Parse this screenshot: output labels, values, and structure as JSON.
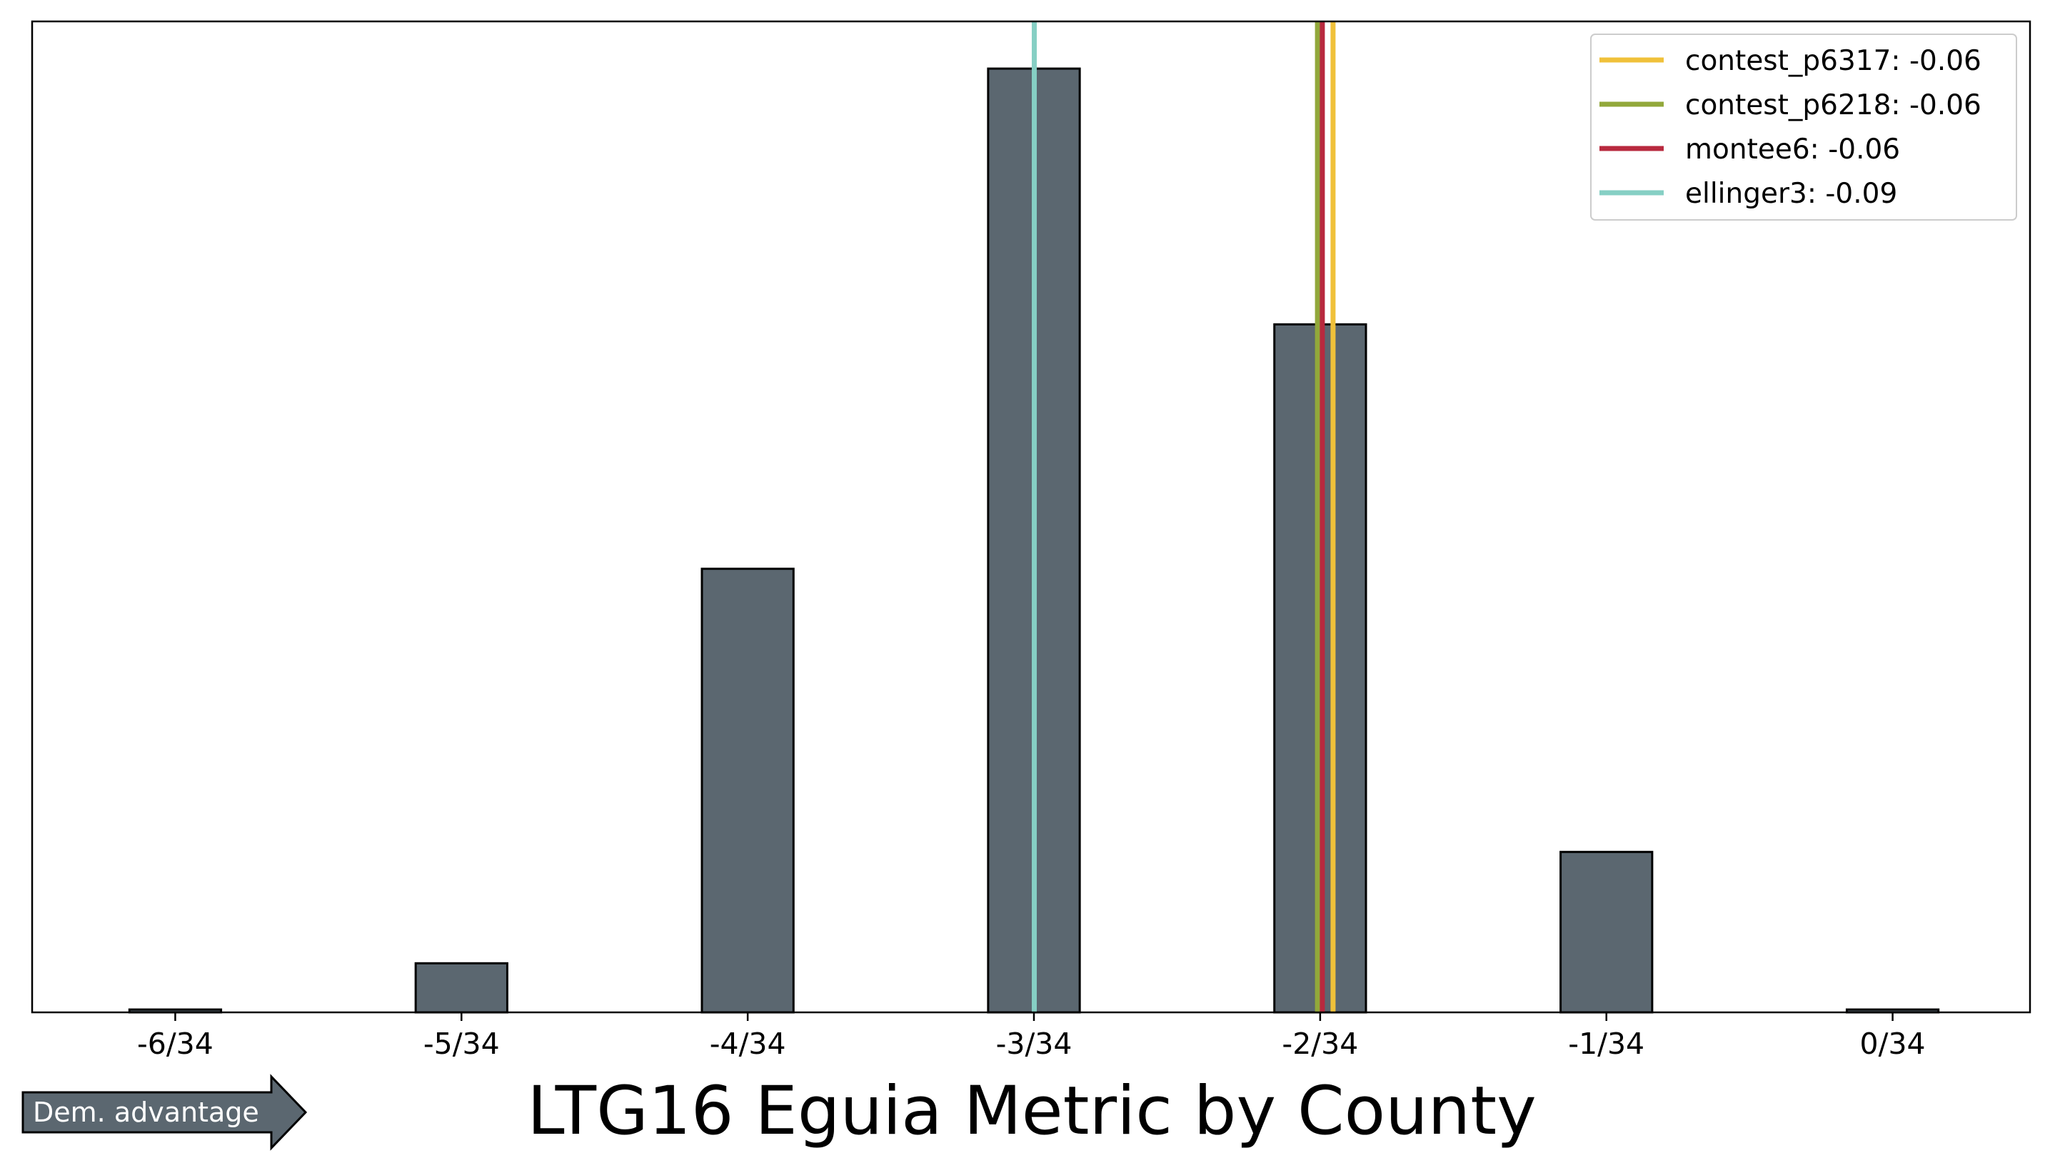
{
  "chart_data": {
    "type": "bar",
    "title": "LTG16 Eguia Metric by County",
    "xlabel": "",
    "ylabel": "",
    "x_tick_labels": [
      "-6/34",
      "-5/34",
      "-4/34",
      "-3/34",
      "-2/34",
      "-1/34",
      "0/34"
    ],
    "x_tick_values": [
      -6,
      -5,
      -4,
      -3,
      -2,
      -1,
      0
    ],
    "x_unit_denominator": 34,
    "xlim": [
      -6.5,
      0.48
    ],
    "ylim": [
      0,
      1.05
    ],
    "y_ticks_visible": false,
    "grid": false,
    "bar_color": "#5b6770",
    "bar_edge_color": "#000000",
    "bins": [
      {
        "center": -6.0,
        "value": 0.003
      },
      {
        "center": -5.5,
        "value": 0.0
      },
      {
        "center": -5.0,
        "value": 0.052
      },
      {
        "center": -4.5,
        "value": 0.0
      },
      {
        "center": -4.0,
        "value": 0.47
      },
      {
        "center": -3.5,
        "value": 0.0
      },
      {
        "center": -3.0,
        "value": 1.0
      },
      {
        "center": -2.5,
        "value": 0.0
      },
      {
        "center": -2.0,
        "value": 0.729
      },
      {
        "center": -1.5,
        "value": 0.0
      },
      {
        "center": -1.0,
        "value": 0.17
      },
      {
        "center": -0.5,
        "value": 0.0
      },
      {
        "center": 0.0,
        "value": 0.003
      }
    ],
    "reference_lines": [
      {
        "name": "contest_p6317: -0.06",
        "value": -0.0575,
        "color": "#f0c13a"
      },
      {
        "name": "contest_p6218: -0.06",
        "value": -0.0591,
        "color": "#92a83b"
      },
      {
        "name": "montee6: -0.06",
        "value": -0.0586,
        "color": "#b8293e"
      },
      {
        "name": "ellinger3: -0.09",
        "value": -0.0882,
        "color": "#86cfc4"
      }
    ],
    "legend_position": "top-right"
  },
  "annotation": {
    "arrow_label": "Dem. advantage",
    "arrow_color": "#5b6770"
  }
}
